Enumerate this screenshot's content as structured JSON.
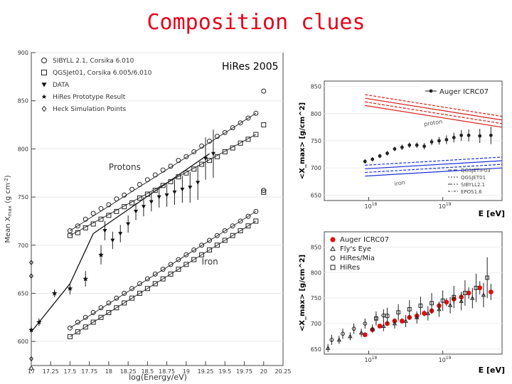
{
  "slide": {
    "title": "Composition clues"
  },
  "chart_data": [
    {
      "type": "scatter",
      "annotation": "HiRes 2005",
      "xlabel": "log(Energy/eV)",
      "ylabel": "Mean X_max (g cm^-2)",
      "ylabel_main": "Mean X",
      "ylabel_sub": "max",
      "ylabel_unit": " (g cm",
      "ylabel_exp": "-2",
      "ylabel_close": ")",
      "xlim": [
        17,
        20.25
      ],
      "ylim": [
        575,
        900
      ],
      "xticks": [
        "17",
        "17.25",
        "17.5",
        "17.75",
        "18",
        "18.25",
        "18.5",
        "18.75",
        "19",
        "19.25",
        "19.5",
        "19.75",
        "20",
        "20.25"
      ],
      "yticks": [
        "600",
        "650",
        "700",
        "750",
        "800",
        "850",
        "900"
      ],
      "region_labels": [
        {
          "text": "Protons",
          "x": 18.0,
          "y": 778
        },
        {
          "text": "Iron",
          "x": 19.2,
          "y": 680
        }
      ],
      "legend": [
        {
          "label": "SIBYLL 2.1, Corsika 6.010",
          "symbol": "circle"
        },
        {
          "label": "QGSJet01, Corsika 6.005/6.010",
          "symbol": "square"
        },
        {
          "label": "DATA",
          "symbol": "triangle-down"
        },
        {
          "label": "HiRes Prototype Result",
          "symbol": "star"
        },
        {
          "label": "Heck Simulation Points",
          "symbol": "diamond"
        }
      ],
      "series": [
        {
          "name": "SIBYLL 2.1, Corsika 6.010 (protons)",
          "symbol": "circle",
          "x": [
            17.5,
            17.6,
            17.7,
            17.8,
            17.9,
            18.0,
            18.1,
            18.2,
            18.3,
            18.4,
            18.5,
            18.6,
            18.7,
            18.8,
            18.9,
            19.0,
            19.1,
            19.2,
            19.3,
            19.4,
            19.5,
            19.6,
            19.7,
            19.8,
            19.9,
            20.0
          ],
          "y": [
            715,
            720,
            727,
            733,
            738,
            742,
            748,
            752,
            758,
            763,
            768,
            773,
            778,
            782,
            788,
            792,
            797,
            803,
            808,
            813,
            817,
            822,
            827,
            832,
            837,
            860
          ]
        },
        {
          "name": "QGSJet01 (protons)",
          "symbol": "square",
          "x": [
            17.5,
            17.6,
            17.7,
            17.8,
            17.9,
            18.0,
            18.1,
            18.2,
            18.3,
            18.4,
            18.5,
            18.6,
            18.7,
            18.8,
            18.9,
            19.0,
            19.1,
            19.2,
            19.3,
            19.4,
            19.5,
            19.6,
            19.7,
            19.8,
            19.9,
            20.0
          ],
          "y": [
            710,
            713,
            718,
            722,
            727,
            731,
            735,
            740,
            744,
            749,
            753,
            757,
            762,
            766,
            771,
            775,
            779,
            784,
            788,
            792,
            797,
            801,
            806,
            810,
            815,
            825
          ]
        },
        {
          "name": "SIBYLL 2.1 (iron)",
          "symbol": "circle",
          "x": [
            17.5,
            17.6,
            17.7,
            17.8,
            17.9,
            18.0,
            18.1,
            18.2,
            18.3,
            18.4,
            18.5,
            18.6,
            18.7,
            18.8,
            18.9,
            19.0,
            19.1,
            19.2,
            19.3,
            19.4,
            19.5,
            19.6,
            19.7,
            19.8,
            19.9,
            20.0
          ],
          "y": [
            614,
            620,
            625,
            630,
            635,
            640,
            645,
            650,
            655,
            660,
            665,
            670,
            675,
            680,
            685,
            690,
            695,
            700,
            705,
            710,
            715,
            720,
            725,
            730,
            735,
            757
          ]
        },
        {
          "name": "QGSJet01 (iron)",
          "symbol": "square",
          "x": [
            17.5,
            17.6,
            17.7,
            17.8,
            17.9,
            18.0,
            18.1,
            18.2,
            18.3,
            18.4,
            18.5,
            18.6,
            18.7,
            18.8,
            18.9,
            19.0,
            19.1,
            19.2,
            19.3,
            19.4,
            19.5,
            19.6,
            19.7,
            19.8,
            19.9,
            20.0
          ],
          "y": [
            605,
            610,
            615,
            620,
            625,
            630,
            635,
            640,
            645,
            650,
            655,
            660,
            665,
            670,
            675,
            680,
            685,
            690,
            695,
            700,
            705,
            710,
            715,
            720,
            725,
            755
          ]
        },
        {
          "name": "DATA",
          "symbol": "triangle-down",
          "x": [
            17.95,
            18.05,
            18.15,
            18.25,
            18.35,
            18.45,
            18.55,
            18.65,
            18.75,
            18.85,
            18.95,
            19.05,
            19.15,
            19.25,
            19.35
          ],
          "y": [
            715,
            705,
            712,
            722,
            735,
            740,
            745,
            750,
            752,
            755,
            758,
            760,
            765,
            790,
            795
          ],
          "err": [
            10,
            9,
            9,
            9,
            9,
            10,
            10,
            11,
            12,
            13,
            14,
            16,
            18,
            22,
            25
          ]
        },
        {
          "name": "HiRes Prototype Result",
          "symbol": "star",
          "x": [
            17.0,
            17.1,
            17.3,
            17.5,
            17.7,
            17.9
          ],
          "y": [
            612,
            620,
            650,
            655,
            665,
            690
          ],
          "err": [
            4,
            4,
            4,
            6,
            8,
            10
          ]
        },
        {
          "name": "Heck Simulation Points",
          "symbol": "diamond",
          "x": [
            17.0,
            17.0,
            17.0,
            17.0
          ],
          "y": [
            682,
            668,
            582,
            572
          ]
        }
      ],
      "fit_line": {
        "x": [
          17.0,
          17.5,
          17.8,
          19.3
        ],
        "y": [
          610,
          660,
          712,
          795
        ]
      }
    },
    {
      "type": "scatter",
      "legend_title": "Auger ICRC07",
      "xlabel": "E [eV]",
      "ylabel": "<X_max> [g/cm^2]",
      "xlim": [
        17.4,
        19.8
      ],
      "ylim": [
        640,
        860
      ],
      "log_x": true,
      "yticks": [
        "650",
        "700",
        "750",
        "800",
        "850"
      ],
      "xtick_labels": [
        {
          "base": "10",
          "exp": "18",
          "x": 18
        },
        {
          "base": "10",
          "exp": "19",
          "x": 19
        }
      ],
      "band_labels": [
        {
          "text": "proton",
          "x": 18.75,
          "y": 777
        },
        {
          "text": "iron",
          "x": 18.35,
          "y": 667
        }
      ],
      "model_legend": [
        {
          "label": "QGSJETII-03",
          "style": "dash"
        },
        {
          "label": "QGSJET01",
          "style": "dot"
        },
        {
          "label": "SIBYLL2.1",
          "style": "dashdot"
        },
        {
          "label": "EPOS1.6",
          "style": "dashdot2"
        }
      ],
      "series": [
        {
          "name": "Auger ICRC07",
          "x": [
            17.95,
            18.05,
            18.15,
            18.25,
            18.35,
            18.45,
            18.55,
            18.65,
            18.75,
            18.85,
            18.95,
            19.05,
            19.15,
            19.25,
            19.35,
            19.5,
            19.65
          ],
          "y": [
            712,
            716,
            722,
            727,
            735,
            738,
            742,
            742,
            740,
            748,
            750,
            752,
            756,
            760,
            760,
            759,
            760
          ],
          "err": [
            4,
            4,
            4,
            4,
            4,
            5,
            5,
            5,
            6,
            6,
            7,
            8,
            9,
            10,
            11,
            13,
            16
          ]
        }
      ],
      "bands": [
        {
          "name": "proton",
          "color": "#d81e1e",
          "x": [
            17.95,
            19.8
          ],
          "y_lo": [
            815,
            775
          ],
          "y_hi": [
            835,
            795
          ]
        },
        {
          "name": "iron",
          "color": "#1e32d8",
          "x": [
            17.95,
            19.8
          ],
          "y_lo": [
            685,
            700
          ],
          "y_hi": [
            705,
            720
          ]
        }
      ]
    },
    {
      "type": "scatter",
      "xlabel": "E [eV]",
      "ylabel": "<X_max> [g/cm^2]",
      "xlim": [
        17.4,
        19.8
      ],
      "ylim": [
        640,
        880
      ],
      "log_x": true,
      "yticks": [
        "650",
        "700",
        "750",
        "800",
        "850"
      ],
      "xtick_labels": [
        {
          "base": "10",
          "exp": "18",
          "x": 18
        },
        {
          "base": "10",
          "exp": "19",
          "x": 19
        }
      ],
      "legend": [
        {
          "label": "Auger ICRC07",
          "symbol": "filled-circle-red"
        },
        {
          "label": "Fly's Eye",
          "symbol": "triangle"
        },
        {
          "label": "HiRes/Mia",
          "symbol": "circle"
        },
        {
          "label": "HiRes",
          "symbol": "square"
        }
      ],
      "series": [
        {
          "name": "Auger ICRC07",
          "symbol": "filled-circle-red",
          "x": [
            17.95,
            18.05,
            18.15,
            18.25,
            18.35,
            18.45,
            18.55,
            18.65,
            18.75,
            18.85,
            18.95,
            19.05,
            19.15,
            19.25,
            19.35,
            19.5,
            19.65
          ],
          "y": [
            678,
            688,
            695,
            700,
            705,
            705,
            712,
            715,
            720,
            725,
            735,
            742,
            748,
            752,
            760,
            770,
            762
          ],
          "err": [
            4,
            4,
            4,
            4,
            4,
            5,
            5,
            5,
            6,
            6,
            7,
            8,
            9,
            10,
            11,
            13,
            16
          ]
        },
        {
          "name": "Fly's Eye",
          "symbol": "triangle",
          "x": [
            17.45,
            17.6,
            17.75,
            17.9,
            18.05,
            18.2,
            18.35,
            18.5,
            18.65,
            18.8,
            18.95,
            19.1,
            19.25,
            19.4,
            19.55
          ],
          "y": [
            652,
            668,
            675,
            682,
            690,
            695,
            700,
            705,
            712,
            720,
            728,
            736,
            744,
            750,
            756
          ],
          "err": [
            8,
            8,
            8,
            8,
            8,
            10,
            10,
            12,
            12,
            14,
            15,
            16,
            18,
            20,
            24
          ]
        },
        {
          "name": "HiRes/Mia",
          "symbol": "circle",
          "x": [
            17.5,
            17.65,
            17.8,
            17.95,
            18.1,
            18.2
          ],
          "y": [
            668,
            680,
            690,
            700,
            710,
            716
          ],
          "err": [
            10,
            10,
            10,
            10,
            10,
            12
          ]
        },
        {
          "name": "HiRes",
          "symbol": "square",
          "x": [
            18.1,
            18.25,
            18.4,
            18.55,
            18.7,
            18.85,
            19.0,
            19.15,
            19.3,
            19.45,
            19.6
          ],
          "y": [
            710,
            715,
            722,
            728,
            735,
            740,
            745,
            752,
            760,
            770,
            790
          ],
          "err": [
            14,
            16,
            16,
            18,
            18,
            20,
            20,
            22,
            25,
            28,
            40
          ]
        }
      ]
    }
  ]
}
